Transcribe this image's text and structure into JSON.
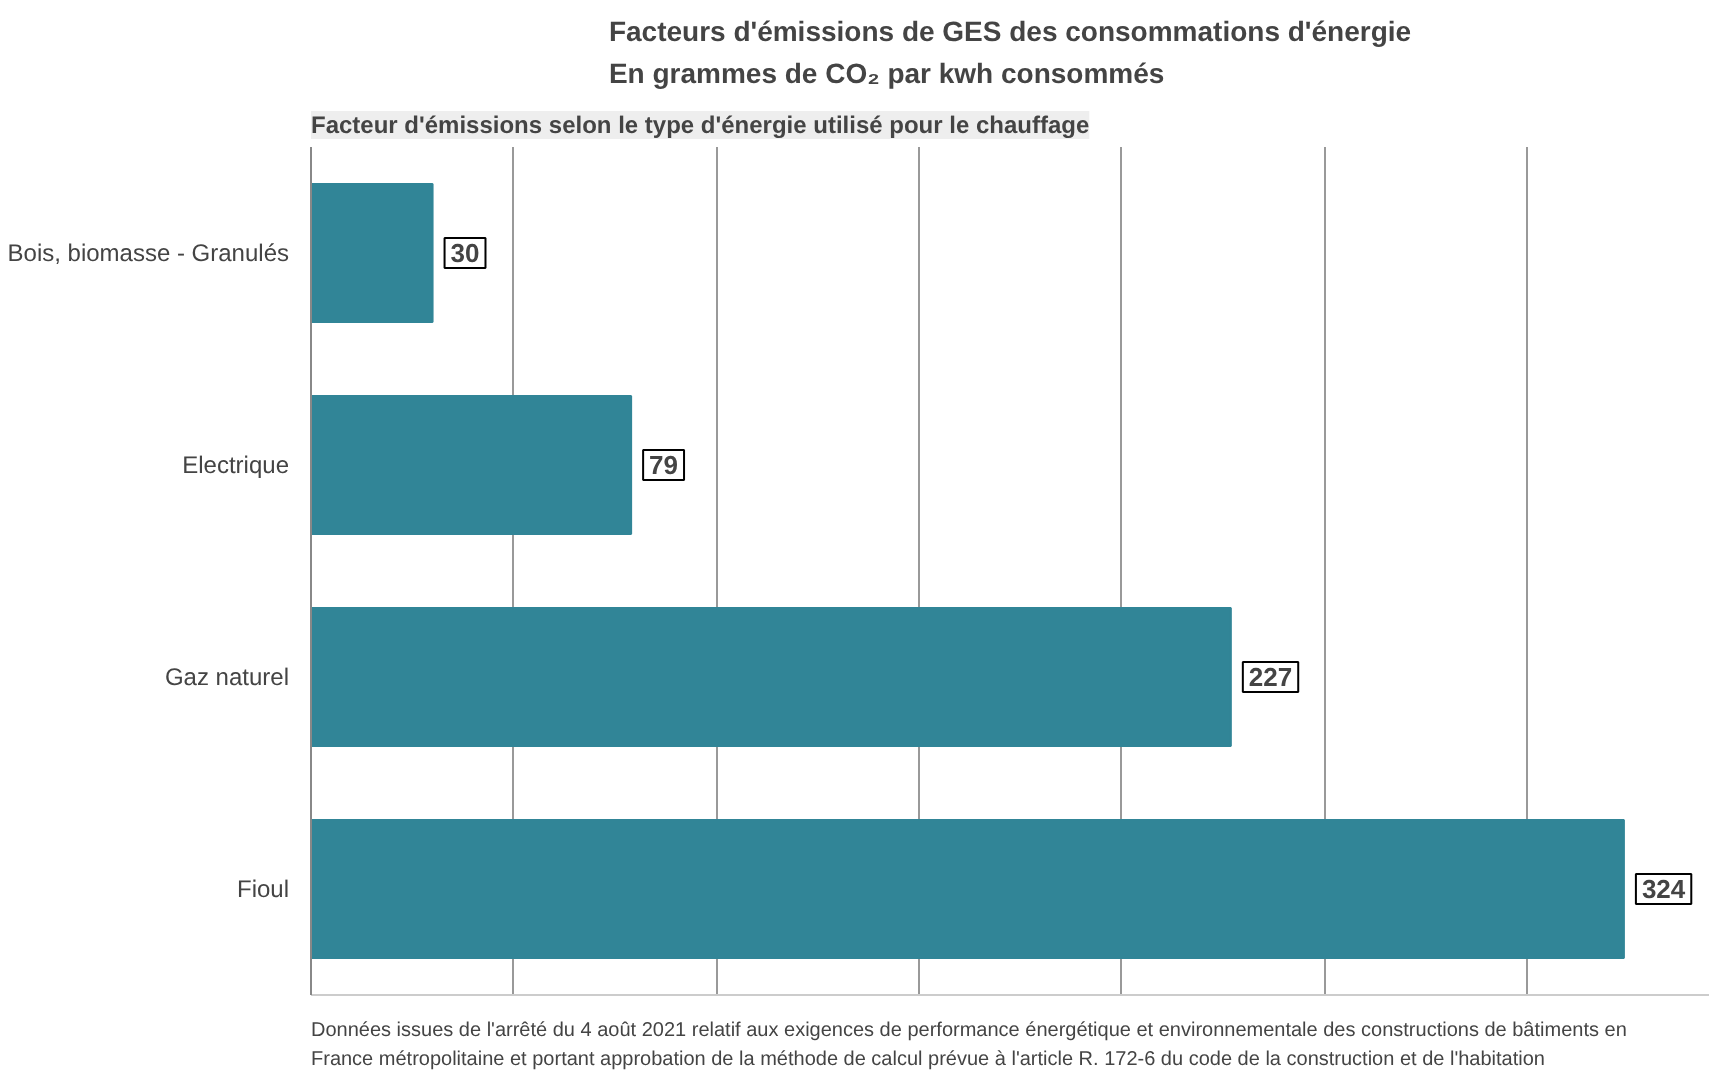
{
  "chart_data": {
    "type": "bar",
    "orientation": "horizontal",
    "title": "Facteurs d'émissions de GES des consommations d'énergie\nEn grammes de CO₂ par kwh consommés",
    "subtitle": "Facteur d'émissions selon le type d'énergie utilisé pour le chauffage",
    "categories": [
      "Bois, biomasse - Granulés",
      "Electrique",
      "Gaz naturel",
      "Fioul"
    ],
    "values": [
      30,
      79,
      227,
      324
    ],
    "color": "#318597",
    "data_labels": true,
    "xlim": [
      0,
      345
    ],
    "xticks": [
      {
        "value": 50,
        "label": null
      },
      {
        "value": 100,
        "label": null
      },
      {
        "value": 150,
        "label": null
      },
      {
        "value": 200,
        "label": null
      },
      {
        "value": 250,
        "label": null
      },
      {
        "value": 300,
        "label": null
      }
    ],
    "grid": "x",
    "tick_labels": "y",
    "annotations": [
      "Données issues de l'arrêté du 4 août 2021 relatif aux exigences de performance énergétique et environnementale des constructions de bâtiments en\nFrance métropolitaine et portant approbation de la méthode de calcul prévue à l'article R. 172-6 du code de la construction et de l'habitation"
    ]
  }
}
